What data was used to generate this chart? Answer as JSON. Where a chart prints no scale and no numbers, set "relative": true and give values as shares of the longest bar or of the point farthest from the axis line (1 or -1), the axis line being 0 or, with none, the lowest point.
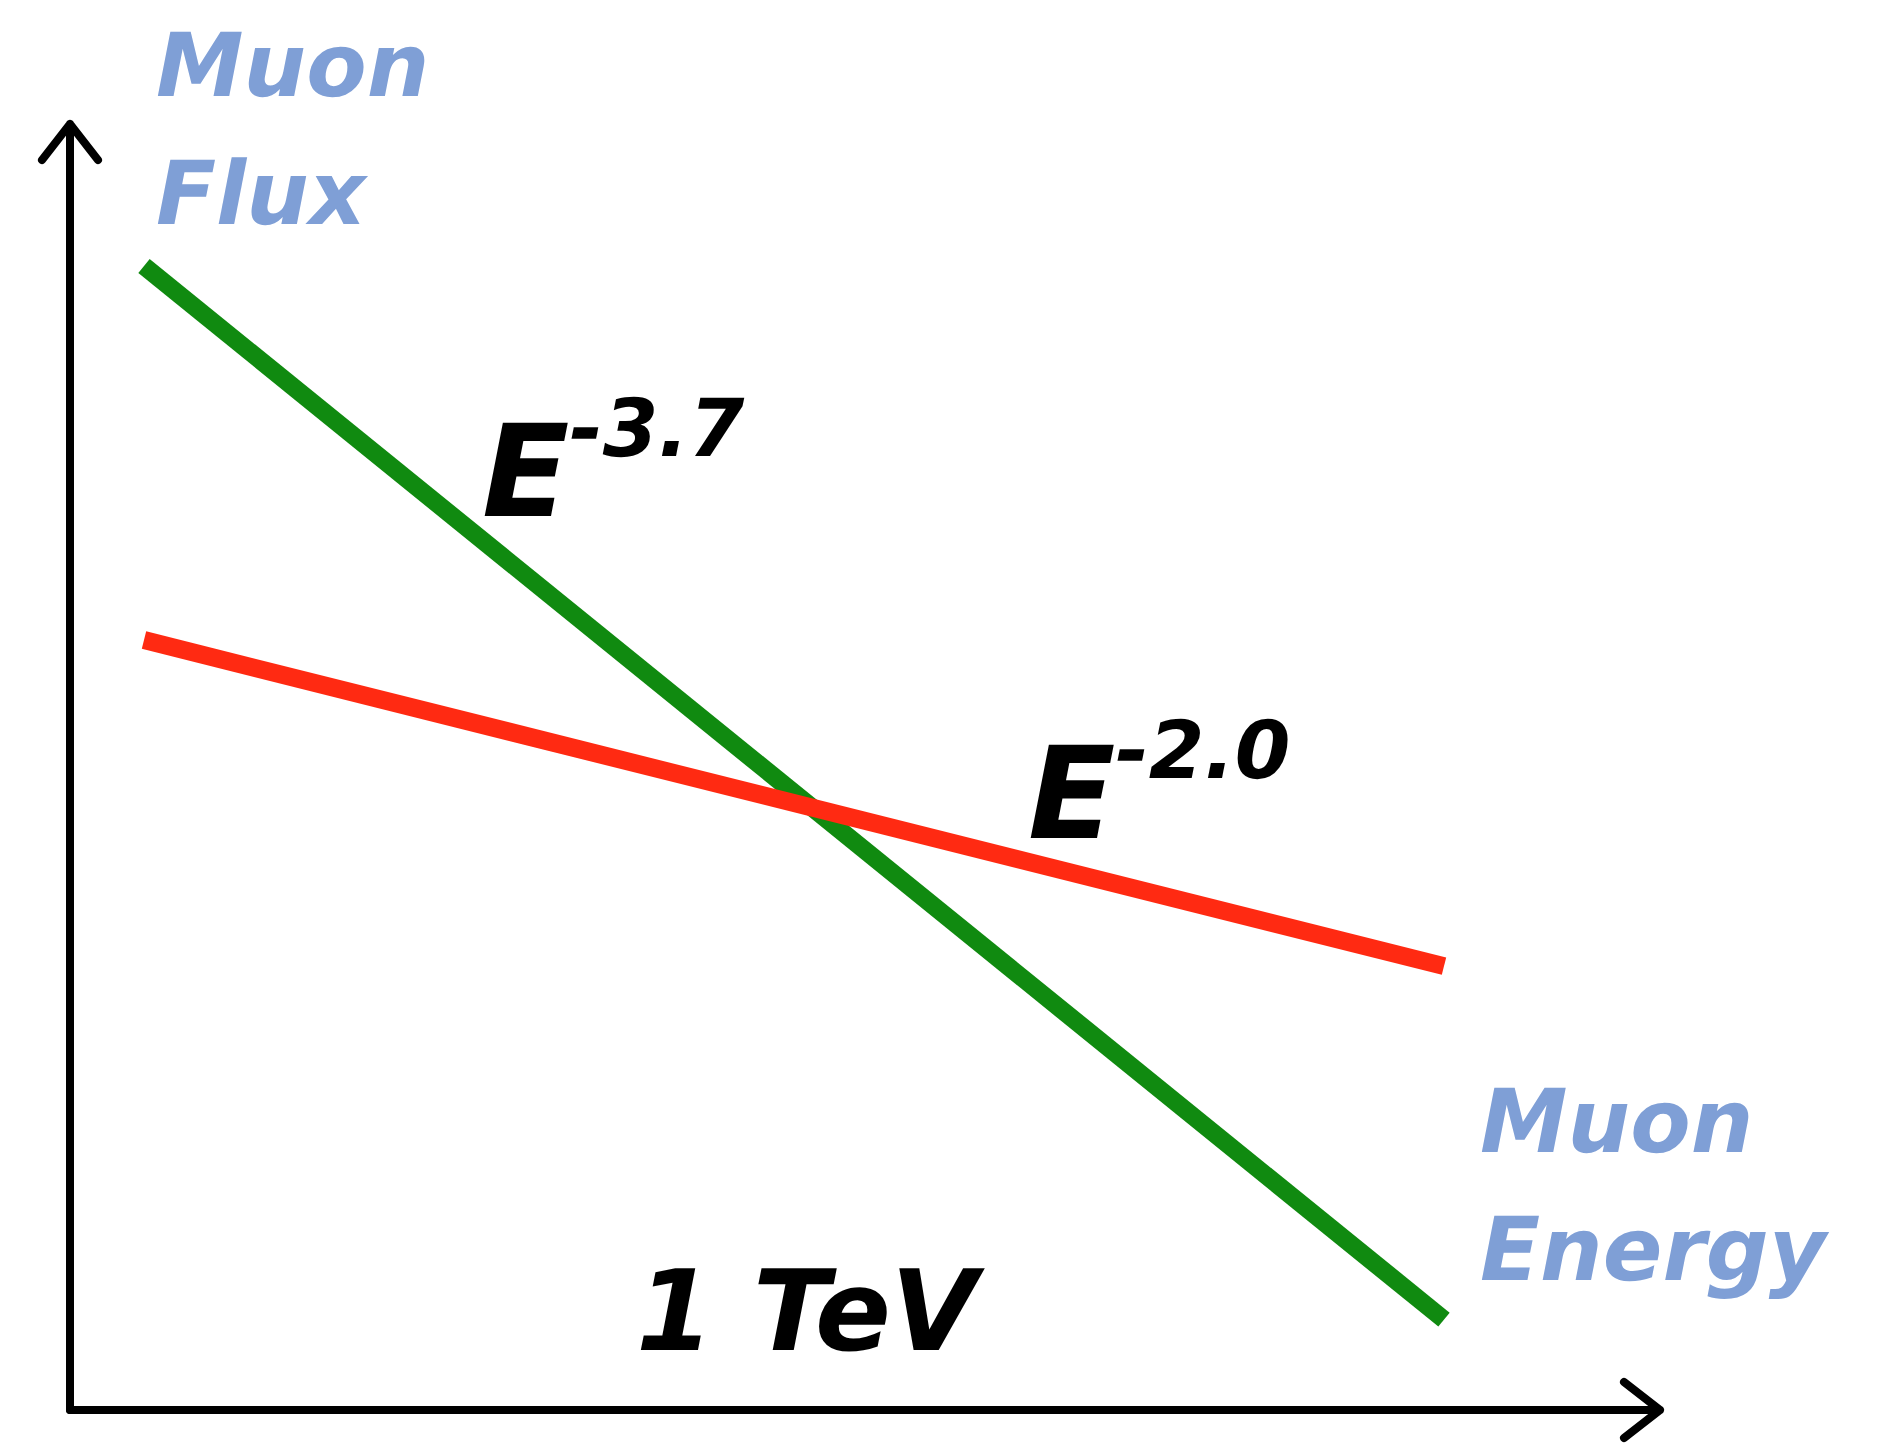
{
  "chart_data": {
    "type": "line",
    "relative": true,
    "ylabel": "Muon Flux",
    "xlabel": "Muon Energy",
    "categories": [
      null,
      null
    ],
    "annotations": [
      "1 TeV"
    ],
    "marker": "none",
    "series": [
      {
        "name": "E$^{-3.7}$",
        "color": "#108a10",
        "values": [
          1,
          0.079
        ]
      },
      {
        "name": "E$^{-2.0}$",
        "color": "#ff2a12",
        "values": [
          0.673,
          0.388
        ]
      }
    ]
  }
}
